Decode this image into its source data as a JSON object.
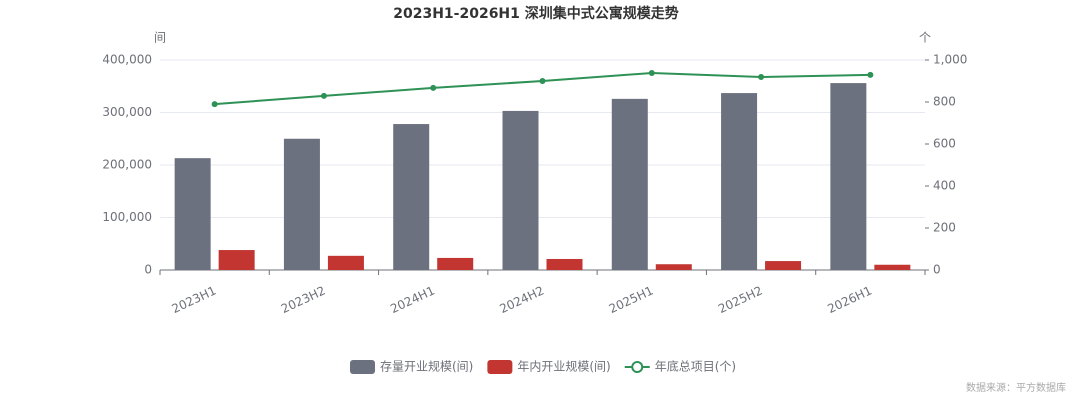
{
  "chart_data": {
    "type": "bar-line",
    "title": "2023H1-2026H1 深圳集中式公寓规模走势",
    "y_label": "间",
    "y2_label": "个",
    "source": "数据来源：平方数据库",
    "categories": [
      "2023H1",
      "2023H2",
      "2024H1",
      "2024H2",
      "2025H1",
      "2025H2",
      "2026H1"
    ],
    "series": [
      {
        "name": "存量开业规模(间)",
        "color": "#6b717e",
        "type": "bar",
        "values": [
          213000,
          250000,
          278000,
          303000,
          326000,
          337000,
          356000
        ]
      },
      {
        "name": "年内开业规模(间)",
        "color": "#c23531",
        "type": "bar",
        "values": [
          38000,
          27000,
          23000,
          21000,
          11000,
          17000,
          10000
        ]
      },
      {
        "name": "年底总项目(个)",
        "color": "#2e9155",
        "type": "line",
        "axis": "y2",
        "values": [
          790,
          829,
          867,
          900,
          938,
          919,
          929
        ]
      }
    ],
    "ylim": [
      0,
      400000
    ],
    "yticks": [
      0,
      {
        "value": 100000,
        "label": "100,000"
      },
      {
        "value": 200000,
        "label": "200,000"
      },
      {
        "value": 300000,
        "label": "300,000"
      },
      {
        "value": 400000,
        "label": "400,000"
      }
    ],
    "y2lim": [
      0,
      1000
    ],
    "y2ticks": [
      0,
      200,
      400,
      600,
      800,
      {
        "value": 1000,
        "label": "1,000"
      }
    ],
    "grid": true,
    "legend": "bottom"
  }
}
